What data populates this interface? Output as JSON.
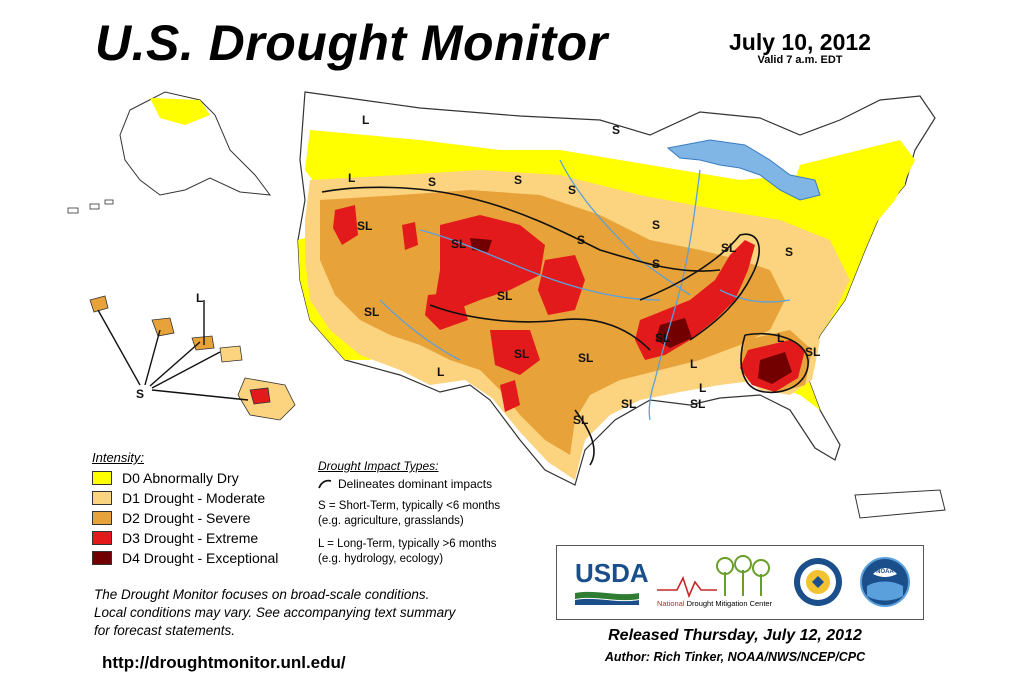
{
  "header": {
    "title": "U.S. Drought Monitor",
    "date": "July 10, 2012",
    "valid": "Valid 7 a.m. EDT"
  },
  "legend": {
    "title": "Intensity:",
    "items": [
      {
        "label": "D0 Abnormally Dry",
        "color": "#FFFF00"
      },
      {
        "label": "D1 Drought - Moderate",
        "color": "#FCD37F"
      },
      {
        "label": "D2 Drought - Severe",
        "color": "#E8A23A"
      },
      {
        "label": "D3 Drought - Extreme",
        "color": "#E31A1C"
      },
      {
        "label": "D4 Drought - Exceptional",
        "color": "#730000"
      }
    ]
  },
  "impact": {
    "title": "Drought Impact Types:",
    "delineates": "Delineates dominant impacts",
    "short_term_1": "S = Short-Term, typically <6 months",
    "short_term_2": "(e.g. agriculture, grasslands)",
    "long_term_1": "L = Long-Term, typically >6 months",
    "long_term_2": "(e.g. hydrology, ecology)"
  },
  "note": {
    "line1": "The Drought Monitor focuses on broad-scale conditions.",
    "line2": "Local conditions may vary. See accompanying text summary",
    "line3": "for forecast statements."
  },
  "url": "http://droughtmonitor.unl.edu/",
  "footer": {
    "released": "Released Thursday, July 12, 2012",
    "author": "Author: Rich Tinker, NOAA/NWS/NCEP/CPC"
  },
  "logos": {
    "usda": "USDA",
    "ndmc_a": "National",
    "ndmc_b": "Drought Mitigation Center",
    "noaa": "NOAA"
  },
  "map": {
    "impact_labels": [
      {
        "text": "L"
      },
      {
        "text": "S"
      },
      {
        "text": "L"
      },
      {
        "text": "S"
      },
      {
        "text": "S"
      },
      {
        "text": "S"
      },
      {
        "text": "S"
      },
      {
        "text": "SL"
      },
      {
        "text": "SL"
      },
      {
        "text": "S"
      },
      {
        "text": "SL"
      },
      {
        "text": "S"
      },
      {
        "text": "SL"
      },
      {
        "text": "SL"
      },
      {
        "text": "SL"
      },
      {
        "text": "L"
      },
      {
        "text": "SL"
      },
      {
        "text": "SL"
      },
      {
        "text": "SL"
      },
      {
        "text": "SL"
      },
      {
        "text": "SL"
      },
      {
        "text": "L"
      },
      {
        "text": "L"
      },
      {
        "text": "SL"
      },
      {
        "text": "L"
      },
      {
        "text": "S"
      },
      {
        "text": "L"
      },
      {
        "text": "S"
      }
    ]
  }
}
